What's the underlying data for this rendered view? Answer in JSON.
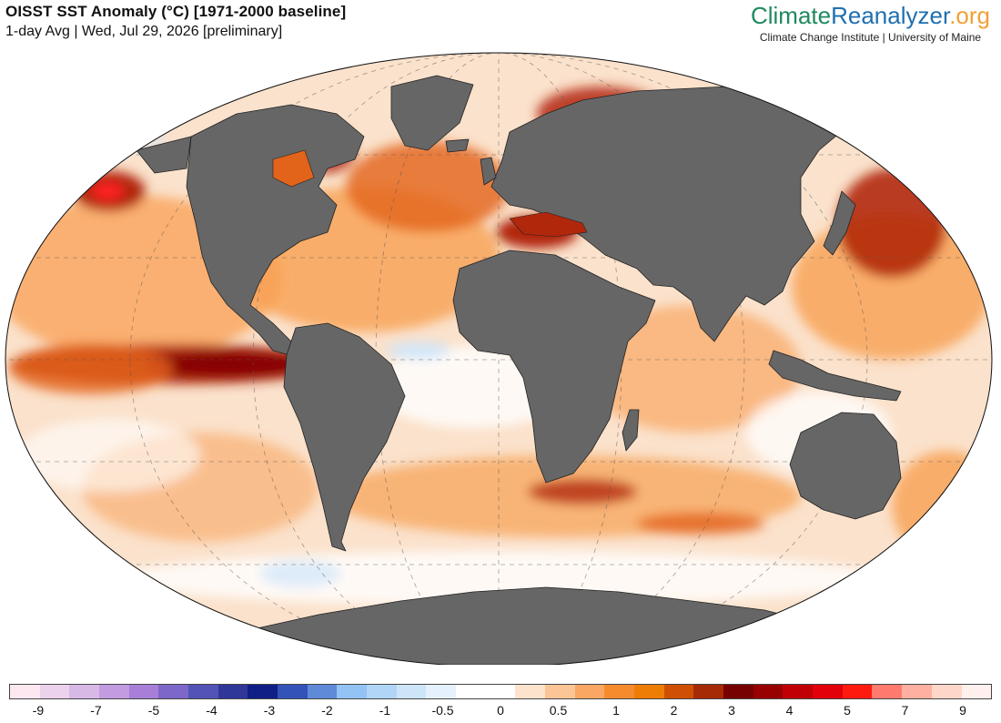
{
  "header": {
    "title": "OISST SST Anomaly (°C) [1971-2000 baseline]",
    "subtitle": "1-day Avg | Wed, Jul 29, 2026 [preliminary]"
  },
  "brand": {
    "part1": "Climate",
    "part2": "Reanalyzer",
    "part3": ".org",
    "subtitle": "Climate Change Institute | University of Maine"
  },
  "map": {
    "projection": "Robinson-like world map",
    "land_color": "#666666",
    "ocean_base_color": "#fbe2cc",
    "hot_colors": [
      "#f7a052",
      "#e2631a",
      "#b1270c",
      "#820000",
      "#ff2020"
    ],
    "cold_colors": [
      "#cfe6fb",
      "#9dc8f5",
      "#6a8ae0"
    ]
  },
  "colorbar": {
    "colors": [
      "#fde8f1",
      "#ecd2ec",
      "#d8b9e6",
      "#c39be0",
      "#a87fd8",
      "#7d67c9",
      "#5353b6",
      "#2f3799",
      "#101f85",
      "#3353b8",
      "#5f8ad8",
      "#92c3f4",
      "#b1d5f7",
      "#cde5f9",
      "#e5f1fc",
      "#ffffff",
      "#ffffff",
      "#fde3cc",
      "#fcc596",
      "#f9a762",
      "#f68b2d",
      "#ee7d06",
      "#cf5004",
      "#a62a05",
      "#770000",
      "#980002",
      "#c10006",
      "#e2000a",
      "#ff1a10",
      "#ff7a6e",
      "#ffb0a0",
      "#ffd7c8",
      "#fff0ee"
    ],
    "tick_labels": [
      "-9",
      "-7",
      "-5",
      "-4",
      "-3",
      "-2",
      "-1",
      "-0.5",
      "0",
      "0.5",
      "1",
      "2",
      "3",
      "4",
      "5",
      "7",
      "9"
    ]
  }
}
